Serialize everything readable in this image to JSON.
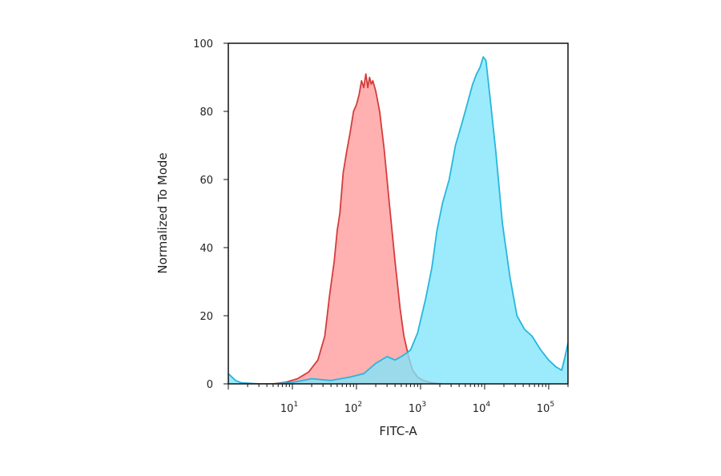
{
  "chart_data": {
    "type": "area",
    "xlabel": "FITC-A",
    "ylabel": "Normalized To Mode",
    "x_scale": "log",
    "xlim": [
      1,
      200000
    ],
    "ylim": [
      0,
      100
    ],
    "x_ticks": [
      {
        "value": 10,
        "base": "10",
        "exp": "1"
      },
      {
        "value": 100,
        "base": "10",
        "exp": "2"
      },
      {
        "value": 1000,
        "base": "10",
        "exp": "3"
      },
      {
        "value": 10000,
        "base": "10",
        "exp": "4"
      },
      {
        "value": 100000,
        "base": "10",
        "exp": "5"
      }
    ],
    "y_ticks": [
      0,
      20,
      40,
      60,
      80,
      100
    ],
    "grid": false,
    "legend": "none",
    "series": [
      {
        "color_fill": "#ff9a9a",
        "color_line": "#d63c3c",
        "points": [
          [
            5,
            0
          ],
          [
            8,
            0.5
          ],
          [
            12,
            1.5
          ],
          [
            18,
            3.5
          ],
          [
            25,
            7
          ],
          [
            32,
            14
          ],
          [
            38,
            26
          ],
          [
            45,
            36
          ],
          [
            50,
            45
          ],
          [
            55,
            50
          ],
          [
            62,
            62
          ],
          [
            70,
            68
          ],
          [
            80,
            74
          ],
          [
            90,
            80
          ],
          [
            100,
            82
          ],
          [
            110,
            85
          ],
          [
            120,
            89
          ],
          [
            130,
            87
          ],
          [
            140,
            91
          ],
          [
            150,
            87
          ],
          [
            160,
            90
          ],
          [
            170,
            88
          ],
          [
            180,
            89
          ],
          [
            200,
            86
          ],
          [
            230,
            80
          ],
          [
            270,
            69
          ],
          [
            330,
            52
          ],
          [
            400,
            36
          ],
          [
            480,
            22
          ],
          [
            550,
            14
          ],
          [
            650,
            8
          ],
          [
            750,
            4
          ],
          [
            900,
            2
          ],
          [
            1100,
            1
          ],
          [
            1500,
            0.3
          ],
          [
            2200,
            0
          ]
        ]
      },
      {
        "color_fill": "#7fe6fb",
        "color_line": "#27b6dd",
        "points": [
          [
            1,
            3
          ],
          [
            1.3,
            1
          ],
          [
            1.6,
            0.3
          ],
          [
            3,
            0
          ],
          [
            5,
            0
          ],
          [
            10,
            0.4
          ],
          [
            20,
            1.5
          ],
          [
            40,
            1
          ],
          [
            80,
            2
          ],
          [
            130,
            3
          ],
          [
            200,
            6
          ],
          [
            300,
            8
          ],
          [
            400,
            7
          ],
          [
            500,
            8
          ],
          [
            600,
            9
          ],
          [
            700,
            10
          ],
          [
            900,
            15
          ],
          [
            1200,
            25
          ],
          [
            1500,
            34
          ],
          [
            1800,
            45
          ],
          [
            2200,
            53
          ],
          [
            2800,
            60
          ],
          [
            3500,
            70
          ],
          [
            4500,
            77
          ],
          [
            5500,
            83
          ],
          [
            6500,
            88
          ],
          [
            7500,
            91
          ],
          [
            8500,
            93
          ],
          [
            9500,
            96
          ],
          [
            10500,
            95
          ],
          [
            12000,
            85
          ],
          [
            15000,
            68
          ],
          [
            19000,
            47
          ],
          [
            25000,
            31
          ],
          [
            32000,
            20
          ],
          [
            42000,
            16
          ],
          [
            55000,
            14
          ],
          [
            75000,
            10
          ],
          [
            100000,
            7
          ],
          [
            130000,
            5
          ],
          [
            160000,
            4
          ],
          [
            180000,
            8
          ],
          [
            200000,
            12
          ]
        ]
      }
    ]
  }
}
